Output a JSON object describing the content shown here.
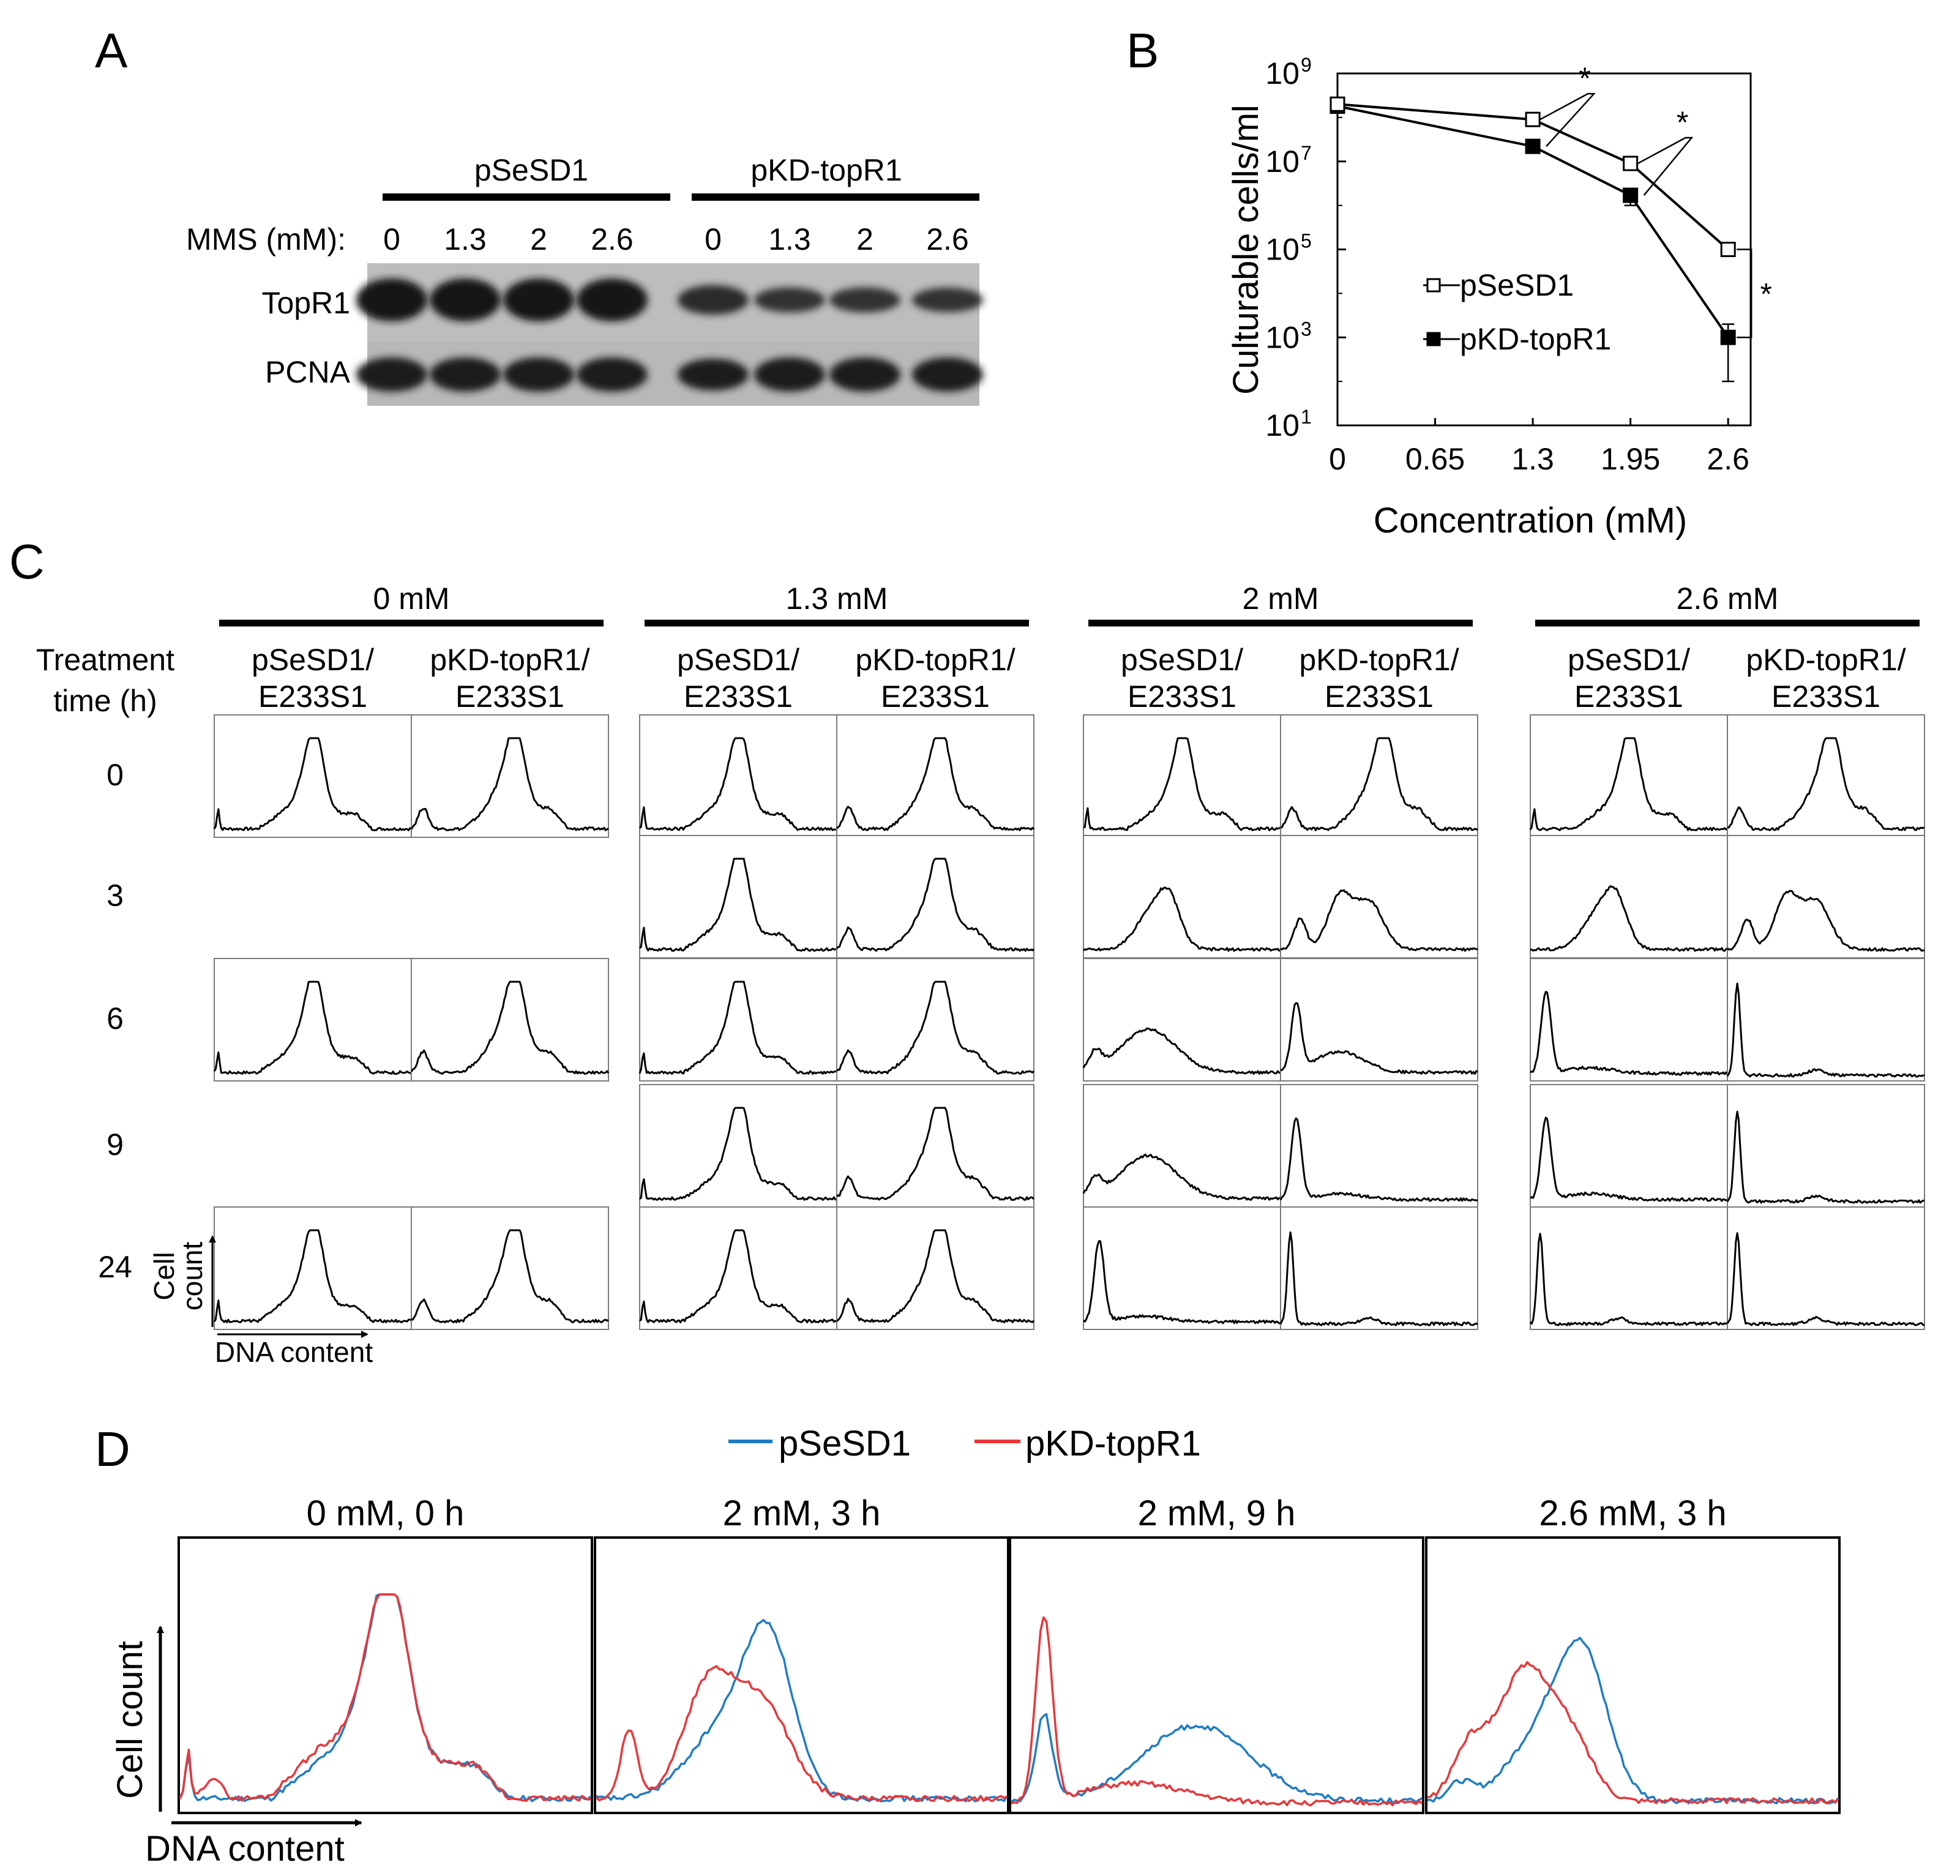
{
  "panel_labels": {
    "a": "A",
    "b": "B",
    "c": "C",
    "d": "D"
  },
  "panel_a": {
    "group_left": "pSeSD1",
    "group_right": "pKD-topR1",
    "mms_label": "MMS (mM):",
    "lanes": [
      "0",
      "1.3",
      "2",
      "2.6",
      "0",
      "1.3",
      "2",
      "2.6"
    ],
    "rows": [
      "TopR1",
      "PCNA"
    ],
    "topr1_intensity": [
      1.0,
      1.0,
      1.0,
      1.0,
      0.55,
      0.4,
      0.4,
      0.38
    ],
    "pcna_intensity": [
      1.0,
      1.0,
      1.0,
      1.0,
      0.85,
      1.0,
      1.0,
      1.0
    ]
  },
  "chart_data": {
    "type": "line",
    "title": "",
    "xlabel": "Concentration (mM)",
    "ylabel": "Culturable cells/ml",
    "yscale": "log",
    "ylim": [
      10,
      1000000000
    ],
    "xlim": [
      0,
      2.75
    ],
    "x_ticks": [
      "0",
      "0.65",
      "1.3",
      "1.95",
      "2.6"
    ],
    "y_ticks": [
      {
        "base": "10",
        "exp": "1"
      },
      {
        "base": "10",
        "exp": "3"
      },
      {
        "base": "10",
        "exp": "5"
      },
      {
        "base": "10",
        "exp": "7"
      },
      {
        "base": "10",
        "exp": "9"
      }
    ],
    "x": [
      0,
      1.3,
      1.95,
      2.6
    ],
    "series": [
      {
        "name": "pSeSD1",
        "marker": "open-square",
        "values": [
          200000000,
          90000000,
          9000000,
          100000
        ],
        "err_low": [
          0,
          0,
          0,
          0
        ],
        "err_high": [
          0,
          0,
          0,
          0
        ]
      },
      {
        "name": "pKD-topR1",
        "marker": "filled-square",
        "values": [
          180000000,
          22000000,
          1700000,
          1000
        ],
        "err_low": [
          0,
          0,
          700000,
          900
        ],
        "err_high": [
          0,
          0,
          0,
          1000
        ]
      }
    ],
    "significance": [
      "*",
      "*",
      "*"
    ],
    "legend_position": "center-left"
  },
  "panel_c": {
    "concentrations": [
      "0 mM",
      "1.3 mM",
      "2 mM",
      "2.6 mM"
    ],
    "row_header": "Treatment time (h)",
    "row_header_lines": [
      "Treatment",
      "time (h)"
    ],
    "strain_a": [
      "pSeSD1/",
      "E233S1"
    ],
    "strain_b": [
      "pKD-topR1/",
      "E233S1"
    ],
    "times": [
      "0",
      "3",
      "6",
      "9",
      "24"
    ],
    "axis_y": [
      "Cell",
      "count"
    ],
    "axis_x": "DNA content"
  },
  "panel_d": {
    "legend": [
      {
        "name": "pSeSD1",
        "color": "#1f7cc4"
      },
      {
        "name": "pKD-topR1",
        "color": "#e8373a"
      }
    ],
    "titles": [
      "0 mM, 0 h",
      "2 mM, 3 h",
      "2 mM, 9 h",
      "2.6 mM, 3 h"
    ],
    "axis_y": "Cell count",
    "axis_x": "DNA content"
  }
}
